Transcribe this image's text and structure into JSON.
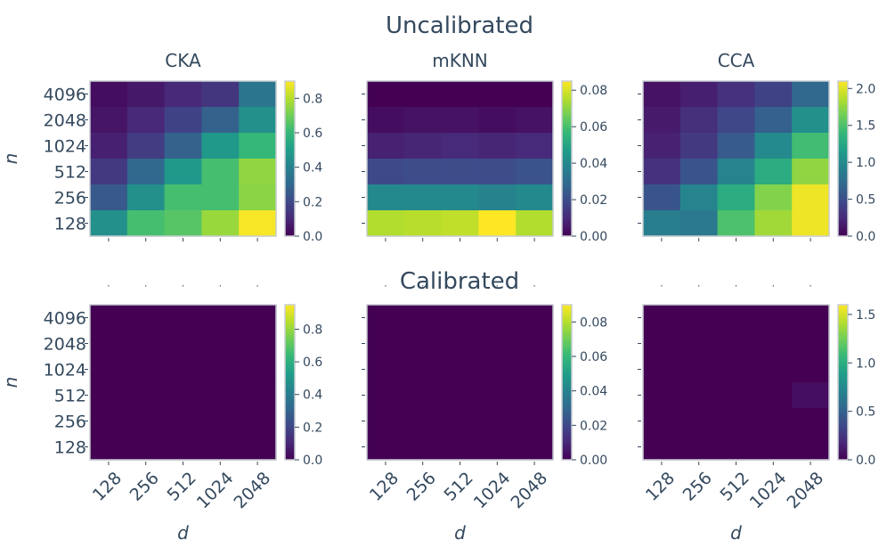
{
  "chart_data": {
    "type": "heatmap",
    "colormap": "viridis",
    "row_titles": [
      "Uncalibrated",
      "Calibrated"
    ],
    "panel_titles": [
      "CKA",
      "mKNN",
      "CCA"
    ],
    "ylabel": "n",
    "xlabel": "d",
    "y_categories": [
      "4096",
      "2048",
      "1024",
      "512",
      "256",
      "128"
    ],
    "x_categories": [
      "128",
      "256",
      "512",
      "1024",
      "2048"
    ],
    "panels": [
      {
        "name": "uncal-cka",
        "row": 0,
        "col": 0,
        "vmin": 0,
        "vmax": 0.9,
        "colorbar_ticks": [
          0.0,
          0.2,
          0.4,
          0.6,
          0.8
        ],
        "colorbar_tick_labels": [
          "0.0",
          "0.2",
          "0.4",
          "0.6",
          "0.8"
        ],
        "values": [
          [
            0.03,
            0.06,
            0.1,
            0.14,
            0.35
          ],
          [
            0.05,
            0.1,
            0.18,
            0.28,
            0.45
          ],
          [
            0.08,
            0.16,
            0.28,
            0.48,
            0.6
          ],
          [
            0.15,
            0.3,
            0.48,
            0.63,
            0.75
          ],
          [
            0.25,
            0.45,
            0.63,
            0.63,
            0.74
          ],
          [
            0.45,
            0.63,
            0.66,
            0.76,
            0.89
          ]
        ]
      },
      {
        "name": "uncal-mknn",
        "row": 0,
        "col": 1,
        "vmin": 0,
        "vmax": 0.085,
        "colorbar_ticks": [
          0.0,
          0.02,
          0.04,
          0.06,
          0.08
        ],
        "colorbar_tick_labels": [
          "0.00",
          "0.02",
          "0.04",
          "0.06",
          "0.08"
        ],
        "values": [
          [
            0.0,
            0.0,
            0.0,
            0.0,
            0.0
          ],
          [
            0.003,
            0.004,
            0.004,
            0.003,
            0.004
          ],
          [
            0.008,
            0.009,
            0.01,
            0.009,
            0.01
          ],
          [
            0.019,
            0.02,
            0.02,
            0.02,
            0.022
          ],
          [
            0.04,
            0.04,
            0.04,
            0.038,
            0.04
          ],
          [
            0.075,
            0.076,
            0.077,
            0.085,
            0.075
          ]
        ]
      },
      {
        "name": "uncal-cca",
        "row": 0,
        "col": 2,
        "vmin": 0,
        "vmax": 2.1,
        "colorbar_ticks": [
          0.0,
          0.5,
          1.0,
          1.5,
          2.0
        ],
        "colorbar_tick_labels": [
          "0.0",
          "0.5",
          "1.0",
          "1.5",
          "2.0"
        ],
        "values": [
          [
            0.1,
            0.18,
            0.3,
            0.42,
            0.7
          ],
          [
            0.15,
            0.28,
            0.45,
            0.65,
            1.05
          ],
          [
            0.2,
            0.35,
            0.6,
            1.0,
            1.45
          ],
          [
            0.3,
            0.55,
            0.95,
            1.3,
            1.75
          ],
          [
            0.55,
            0.95,
            1.3,
            1.7,
            2.05
          ],
          [
            0.9,
            0.85,
            1.5,
            1.8,
            2.05
          ]
        ]
      },
      {
        "name": "cal-cka",
        "row": 1,
        "col": 0,
        "vmin": 0,
        "vmax": 0.95,
        "colorbar_ticks": [
          0.0,
          0.2,
          0.4,
          0.6,
          0.8
        ],
        "colorbar_tick_labels": [
          "0.0",
          "0.2",
          "0.4",
          "0.6",
          "0.8"
        ],
        "values": [
          [
            0,
            0,
            0,
            0,
            0
          ],
          [
            0,
            0,
            0,
            0,
            0
          ],
          [
            0,
            0,
            0,
            0,
            0
          ],
          [
            0,
            0,
            0,
            0,
            0
          ],
          [
            0,
            0,
            0,
            0,
            0
          ],
          [
            0,
            0,
            0,
            0,
            0
          ]
        ]
      },
      {
        "name": "cal-mknn",
        "row": 1,
        "col": 1,
        "vmin": 0,
        "vmax": 0.09,
        "colorbar_ticks": [
          0.0,
          0.02,
          0.04,
          0.06,
          0.08
        ],
        "colorbar_tick_labels": [
          "0.00",
          "0.02",
          "0.04",
          "0.06",
          "0.08"
        ],
        "values": [
          [
            0,
            0,
            0,
            0,
            0
          ],
          [
            0,
            0,
            0,
            0,
            0
          ],
          [
            0,
            0,
            0,
            0,
            0
          ],
          [
            0,
            0,
            0,
            0,
            0
          ],
          [
            0,
            0,
            0,
            0,
            0
          ],
          [
            0,
            0,
            0,
            0,
            0
          ]
        ]
      },
      {
        "name": "cal-cca",
        "row": 1,
        "col": 2,
        "vmin": 0,
        "vmax": 1.6,
        "colorbar_ticks": [
          0.0,
          0.5,
          1.0,
          1.5
        ],
        "colorbar_tick_labels": [
          "0.0",
          "0.5",
          "1.0",
          "1.5"
        ],
        "values": [
          [
            0,
            0,
            0,
            0,
            0
          ],
          [
            0,
            0,
            0,
            0,
            0
          ],
          [
            0,
            0,
            0,
            0,
            0
          ],
          [
            0,
            0,
            0,
            0,
            0.06
          ],
          [
            0,
            0,
            0,
            0,
            0
          ],
          [
            0,
            0,
            0,
            0,
            0
          ]
        ]
      }
    ]
  }
}
